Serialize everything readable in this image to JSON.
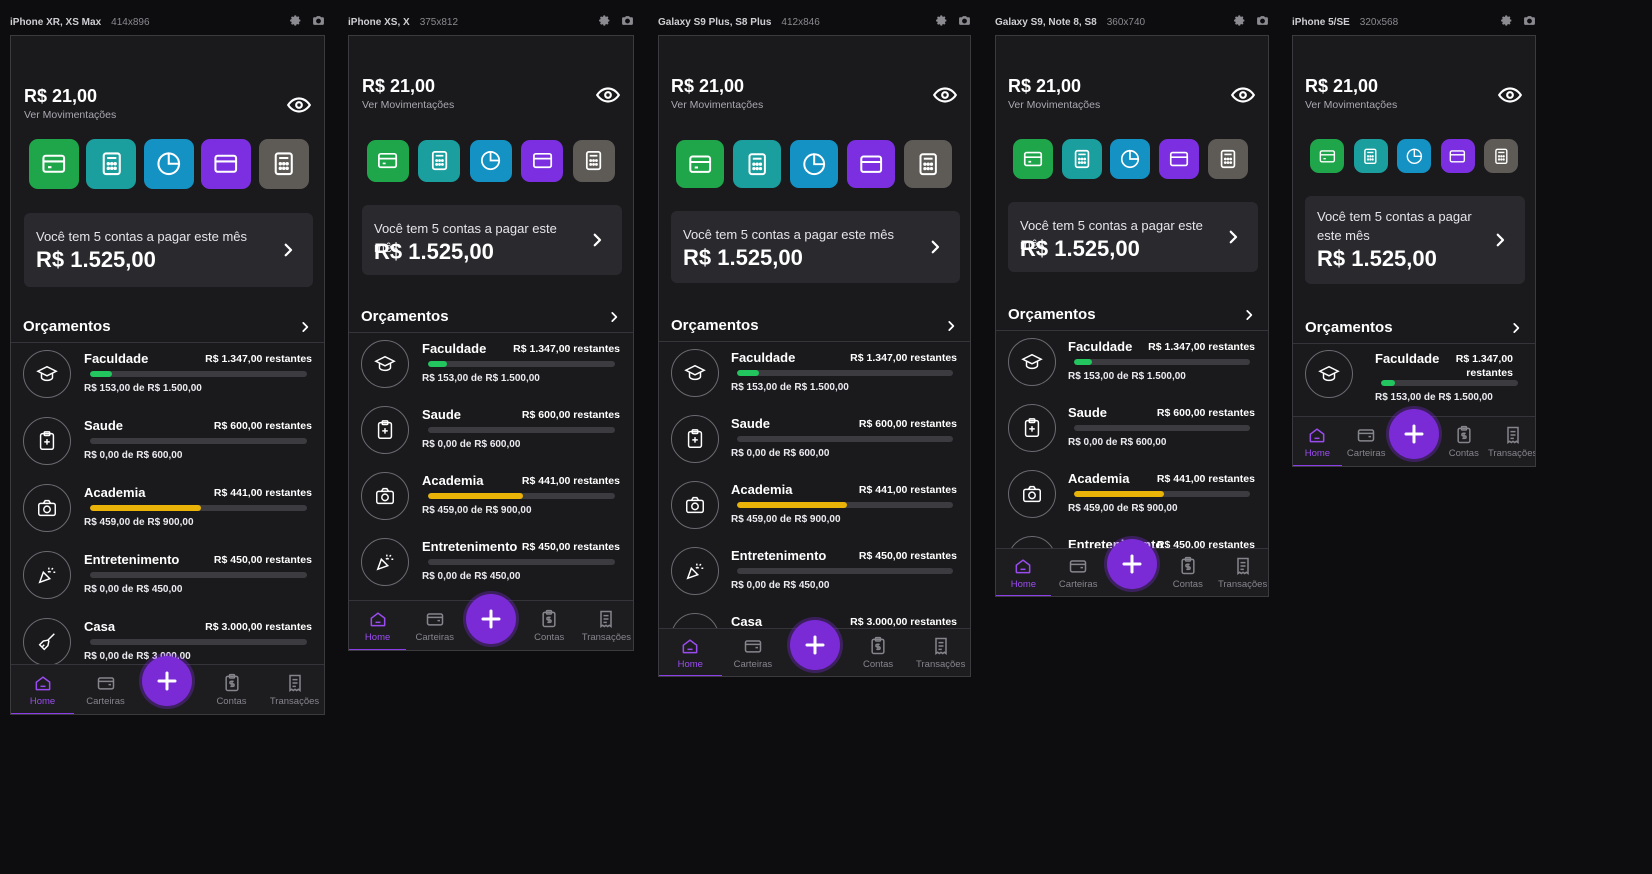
{
  "devices": [
    {
      "name": "iPhone XR, XS Max",
      "size": "414x896"
    },
    {
      "name": "iPhone XS, X",
      "size": "375x812"
    },
    {
      "name": "Galaxy S9 Plus, S8 Plus",
      "size": "412x846"
    },
    {
      "name": "Galaxy S9, Note 8, S8",
      "size": "360x740"
    },
    {
      "name": "iPhone 5/SE",
      "size": "320x568"
    }
  ],
  "app": {
    "balance": "R$ 21,00",
    "ver_movimentacoes": "Ver Movimentações",
    "bills_text": "Você tem 5 contas a pagar este mês",
    "bills_amount": "R$ 1.525,00",
    "orcamentos_title": "Orçamentos",
    "quick_actions": [
      {
        "icon": "card-icon",
        "color": "#1fa64a"
      },
      {
        "icon": "calculator-icon",
        "color": "#1a9e9e"
      },
      {
        "icon": "pie-chart-icon",
        "color": "#1592c4"
      },
      {
        "icon": "wallet-card-icon",
        "color": "#7b2fe0"
      },
      {
        "icon": "calculator-icon",
        "color": "#5e5b57"
      }
    ],
    "budgets": [
      {
        "name": "Faculdade",
        "remaining": "R$ 1.347,00 restantes",
        "spent": "R$ 153,00 de R$ 1.500,00",
        "progress": 0.1,
        "color": "#22c55e",
        "icon": "graduation-cap-icon"
      },
      {
        "name": "Saude",
        "remaining": "R$ 600,00 restantes",
        "spent": "R$ 0,00 de R$ 600,00",
        "progress": 0,
        "color": "#22c55e",
        "icon": "medical-clipboard-icon"
      },
      {
        "name": "Academia",
        "remaining": "R$ 441,00 restantes",
        "spent": "R$ 459,00 de R$ 900,00",
        "progress": 0.51,
        "color": "#eab308",
        "icon": "camera-icon"
      },
      {
        "name": "Entretenimento",
        "remaining": "R$ 450,00 restantes",
        "spent": "R$ 0,00 de R$ 450,00",
        "progress": 0,
        "color": "#22c55e",
        "icon": "party-popper-icon"
      },
      {
        "name": "Casa",
        "remaining": "R$ 3.000,00 restantes",
        "spent": "R$ 0,00 de R$ 3.000,00",
        "progress": 0,
        "color": "#22c55e",
        "icon": "broom-icon"
      }
    ],
    "nav": [
      {
        "label": "Home",
        "icon": "home-icon"
      },
      {
        "label": "Carteiras",
        "icon": "wallet-icon"
      },
      {
        "label": "Contas",
        "icon": "bill-icon"
      },
      {
        "label": "Transações",
        "icon": "receipt-icon"
      }
    ]
  }
}
